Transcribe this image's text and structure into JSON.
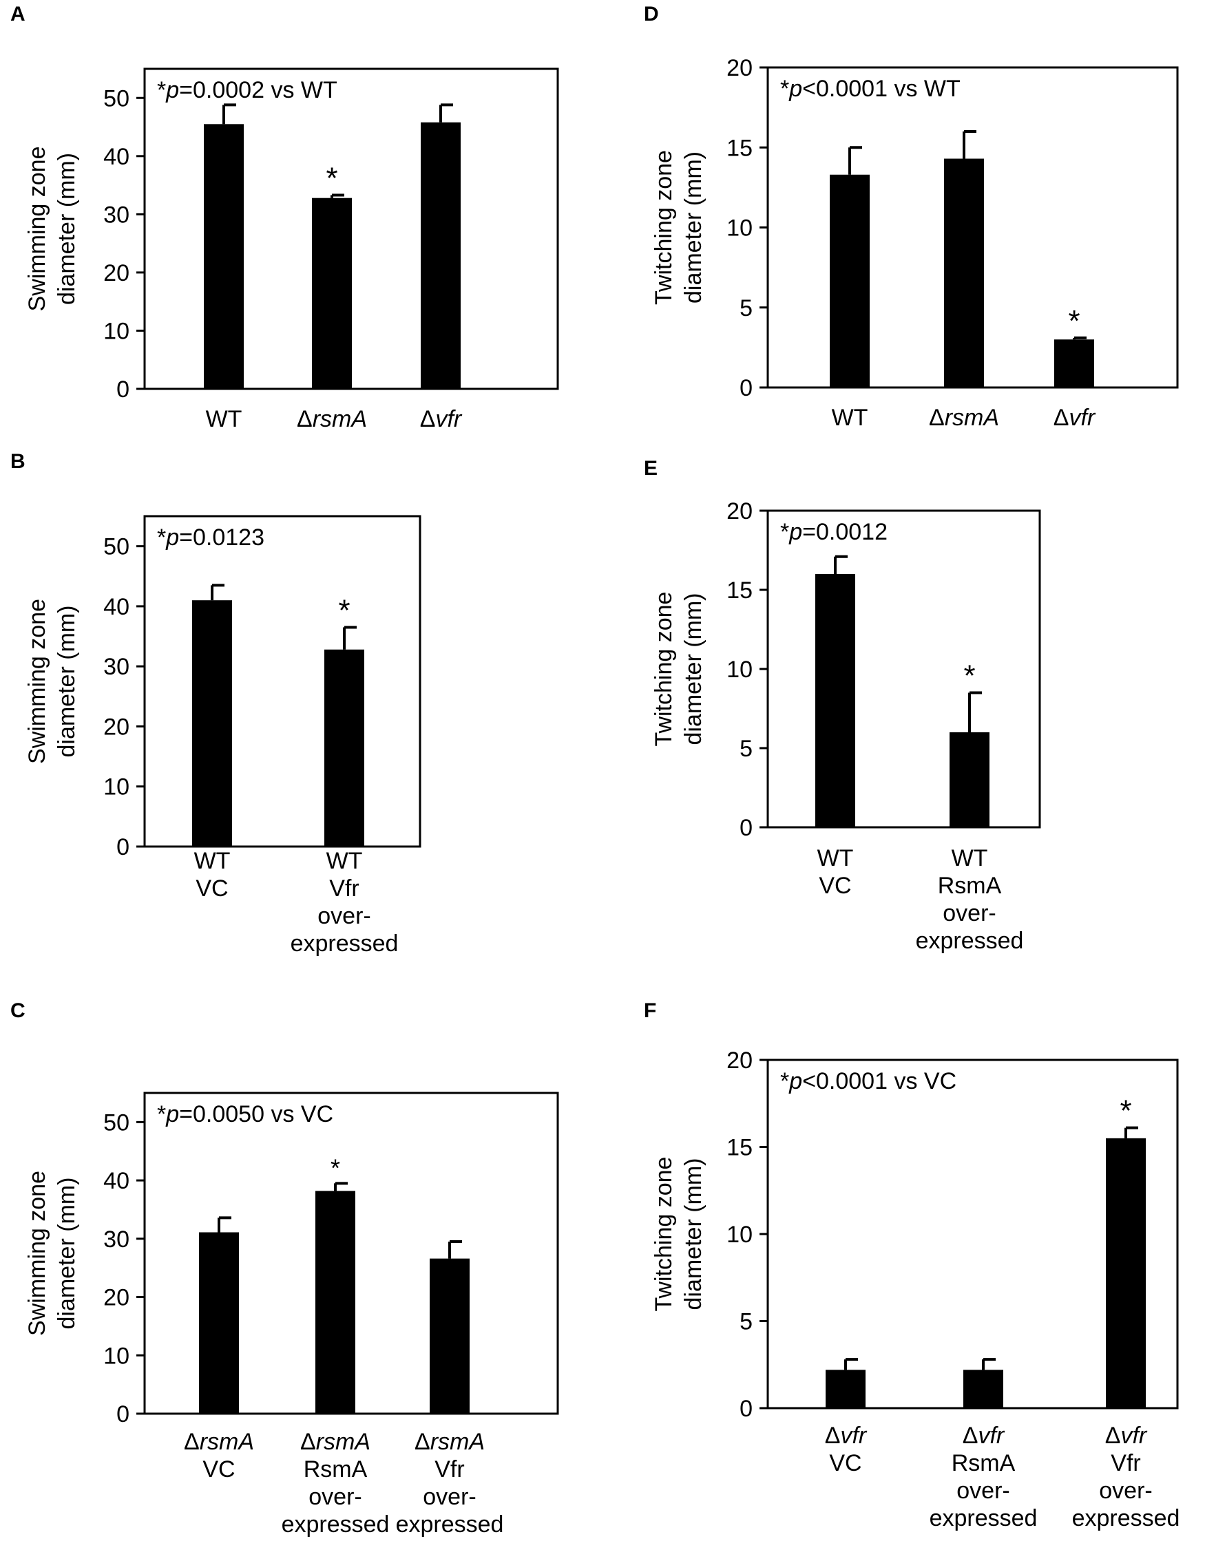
{
  "chart_data": [
    {
      "panel": "A",
      "type": "bar",
      "categories": [
        [
          {
            "pre": "WT",
            "it": "",
            "post": ""
          }
        ],
        [
          {
            "pre": "Δ",
            "it": "rsmA",
            "post": ""
          }
        ],
        [
          {
            "pre": "Δ",
            "it": "vfr",
            "post": ""
          }
        ]
      ],
      "values": [
        45.5,
        32.8,
        45.8
      ],
      "errors": [
        3.3,
        0.5,
        3.0
      ],
      "significant": [
        false,
        true,
        false
      ],
      "star_big": true,
      "ylabel": [
        "Swimming zone",
        "diameter (mm)"
      ],
      "ylim": [
        0,
        55
      ],
      "ticks": [
        0,
        10,
        20,
        30,
        40,
        50
      ],
      "annotation": {
        "prefix": "*",
        "italic": "p",
        "suffix": "=0.0002 vs WT"
      }
    },
    {
      "panel": "B",
      "type": "bar",
      "categories": [
        [
          {
            "pre": "WT",
            "it": "",
            "post": ""
          },
          {
            "pre": "VC",
            "it": "",
            "post": ""
          }
        ],
        [
          {
            "pre": "WT",
            "it": "",
            "post": ""
          },
          {
            "pre": "Vfr",
            "it": "",
            "post": ""
          },
          {
            "pre": "over-",
            "it": "",
            "post": ""
          },
          {
            "pre": "expressed",
            "it": "",
            "post": ""
          }
        ]
      ],
      "values": [
        41.0,
        32.8
      ],
      "errors": [
        2.5,
        3.7
      ],
      "significant": [
        false,
        true
      ],
      "star_big": true,
      "ylabel": [
        "Swimming zone",
        "diameter (mm)"
      ],
      "ylim": [
        0,
        55
      ],
      "ticks": [
        0,
        10,
        20,
        30,
        40,
        50
      ],
      "annotation": {
        "prefix": "*",
        "italic": "p",
        "suffix": "=0.0123"
      }
    },
    {
      "panel": "C",
      "type": "bar",
      "categories": [
        [
          {
            "pre": "Δ",
            "it": "rsmA",
            "post": ""
          },
          {
            "pre": "VC",
            "it": "",
            "post": ""
          }
        ],
        [
          {
            "pre": "Δ",
            "it": "rsmA",
            "post": ""
          },
          {
            "pre": "RsmA",
            "it": "",
            "post": ""
          },
          {
            "pre": "over-",
            "it": "",
            "post": ""
          },
          {
            "pre": "expressed",
            "it": "",
            "post": ""
          }
        ],
        [
          {
            "pre": "Δ",
            "it": "rsmA",
            "post": ""
          },
          {
            "pre": "Vfr",
            "it": "",
            "post": ""
          },
          {
            "pre": "over-",
            "it": "",
            "post": ""
          },
          {
            "pre": "expressed",
            "it": "",
            "post": ""
          }
        ]
      ],
      "values": [
        31.1,
        38.2,
        26.6
      ],
      "errors": [
        2.5,
        1.3,
        2.9
      ],
      "significant": [
        false,
        true,
        false
      ],
      "star_big": false,
      "ylabel": [
        "Swimming zone",
        "diameter (mm)"
      ],
      "ylim": [
        0,
        55
      ],
      "ticks": [
        0,
        10,
        20,
        30,
        40,
        50
      ],
      "annotation": {
        "prefix": "*",
        "italic": "p",
        "suffix": "=0.0050 vs VC"
      }
    },
    {
      "panel": "D",
      "type": "bar",
      "categories": [
        [
          {
            "pre": "WT",
            "it": "",
            "post": ""
          }
        ],
        [
          {
            "pre": "Δ",
            "it": "rsmA",
            "post": ""
          }
        ],
        [
          {
            "pre": "Δ",
            "it": "vfr",
            "post": ""
          }
        ]
      ],
      "values": [
        13.3,
        14.3,
        3.0
      ],
      "errors": [
        1.7,
        1.7,
        0.1
      ],
      "significant": [
        false,
        false,
        true
      ],
      "star_big": true,
      "ylabel": [
        "Twitching zone",
        "diameter (mm)"
      ],
      "ylim": [
        0,
        20
      ],
      "ticks": [
        0,
        5,
        10,
        15,
        20
      ],
      "annotation": {
        "prefix": "*",
        "italic": "p",
        "suffix": "<0.0001 vs WT"
      }
    },
    {
      "panel": "E",
      "type": "bar",
      "categories": [
        [
          {
            "pre": "WT",
            "it": "",
            "post": ""
          },
          {
            "pre": "VC",
            "it": "",
            "post": ""
          }
        ],
        [
          {
            "pre": "WT",
            "it": "",
            "post": ""
          },
          {
            "pre": "RsmA",
            "it": "",
            "post": ""
          },
          {
            "pre": "over-",
            "it": "",
            "post": ""
          },
          {
            "pre": "expressed",
            "it": "",
            "post": ""
          }
        ]
      ],
      "values": [
        16.0,
        6.0
      ],
      "errors": [
        1.1,
        2.5
      ],
      "significant": [
        false,
        true
      ],
      "star_big": true,
      "ylabel": [
        "Twitching zone",
        "diameter (mm)"
      ],
      "ylim": [
        0,
        20
      ],
      "ticks": [
        0,
        5,
        10,
        15,
        20
      ],
      "annotation": {
        "prefix": "*",
        "italic": "p",
        "suffix": "=0.0012"
      }
    },
    {
      "panel": "F",
      "type": "bar",
      "categories": [
        [
          {
            "pre": "Δ",
            "it": "vfr",
            "post": ""
          },
          {
            "pre": "VC",
            "it": "",
            "post": ""
          }
        ],
        [
          {
            "pre": "Δ",
            "it": "vfr",
            "post": ""
          },
          {
            "pre": "RsmA",
            "it": "",
            "post": ""
          },
          {
            "pre": "over-",
            "it": "",
            "post": ""
          },
          {
            "pre": "expressed",
            "it": "",
            "post": ""
          }
        ],
        [
          {
            "pre": "Δ",
            "it": "vfr",
            "post": ""
          },
          {
            "pre": "Vfr",
            "it": "",
            "post": ""
          },
          {
            "pre": "over-",
            "it": "",
            "post": ""
          },
          {
            "pre": "expressed",
            "it": "",
            "post": ""
          }
        ]
      ],
      "values": [
        2.2,
        2.2,
        15.5
      ],
      "errors": [
        0.6,
        0.6,
        0.6
      ],
      "significant": [
        false,
        false,
        true
      ],
      "star_big": true,
      "ylabel": [
        "Twitching zone",
        "diameter (mm)"
      ],
      "ylim": [
        0,
        20
      ],
      "ticks": [
        0,
        5,
        10,
        15,
        20
      ],
      "annotation": {
        "prefix": "*",
        "italic": "p",
        "suffix": "<0.0001 vs VC"
      }
    }
  ],
  "colors": {
    "bar": "#000000",
    "axis": "#000000",
    "background": "#ffffff"
  }
}
